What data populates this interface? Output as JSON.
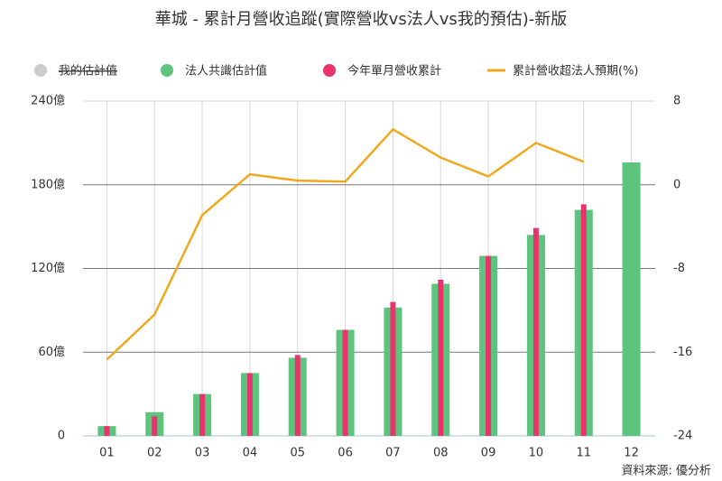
{
  "chart_data": {
    "type": "combo",
    "title": "華城 - 累計月營收追蹤(實際營收vs法人vs我的預估)-新版",
    "source": "資料來源: 優分析",
    "categories": [
      "01",
      "02",
      "03",
      "04",
      "05",
      "06",
      "07",
      "08",
      "09",
      "10",
      "11",
      "12"
    ],
    "series": [
      {
        "name": "我的估計值",
        "type": "bar",
        "hidden": true,
        "color": "#cccccc",
        "values": [
          null,
          null,
          null,
          null,
          null,
          null,
          null,
          null,
          null,
          null,
          null,
          null
        ]
      },
      {
        "name": "法人共識估計值",
        "type": "bar",
        "color": "#5cc47c",
        "values": [
          7,
          17,
          30,
          45,
          56,
          76,
          92,
          109,
          129,
          144,
          162,
          196
        ]
      },
      {
        "name": "今年單月營收累計",
        "type": "bar",
        "color": "#e8336d",
        "values": [
          7,
          14,
          30,
          45,
          58,
          76,
          96,
          112,
          129,
          149,
          166,
          null
        ]
      },
      {
        "name": "累計營收超法人預期(%)",
        "type": "line",
        "axis": "y2",
        "color": "#f0a81c",
        "values": [
          -16.7,
          -12.4,
          -2.9,
          1.0,
          0.4,
          0.3,
          5.3,
          2.6,
          0.8,
          4.0,
          2.2,
          null
        ]
      }
    ],
    "ylim": [
      0,
      240
    ],
    "yticks": [
      0,
      {
        "value": 60,
        "label": "60億"
      },
      {
        "value": 120,
        "label": "120億"
      },
      {
        "value": 180,
        "label": "180億"
      },
      {
        "value": 240,
        "label": "240億"
      }
    ],
    "y2lim": [
      -24,
      8
    ],
    "y2ticks": [
      -24,
      -16,
      -8,
      0,
      8
    ],
    "grid": true
  }
}
